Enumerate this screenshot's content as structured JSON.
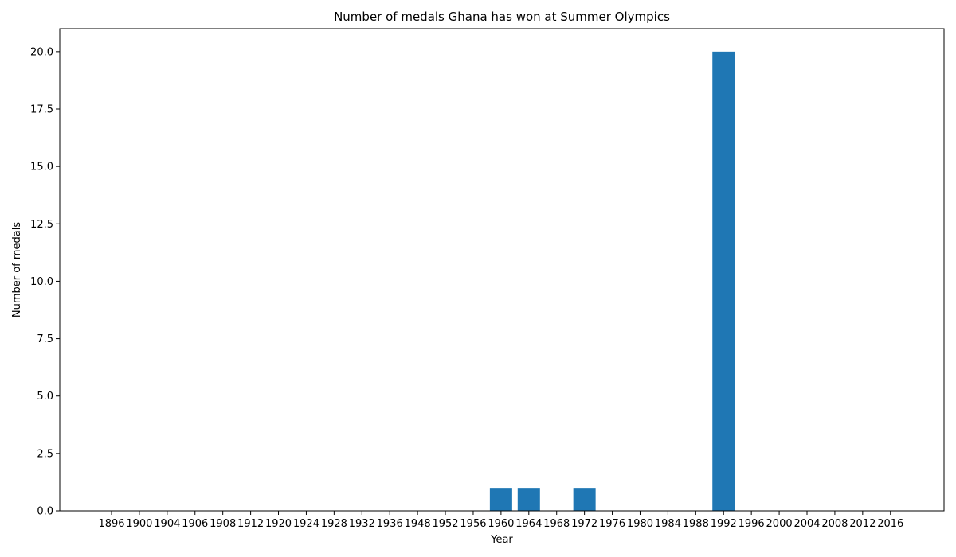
{
  "chart_data": {
    "type": "bar",
    "title": "Number of medals Ghana has won at Summer Olympics",
    "xlabel": "Year",
    "ylabel": "Number of medals",
    "categories": [
      "1896",
      "1900",
      "1904",
      "1906",
      "1908",
      "1912",
      "1920",
      "1924",
      "1928",
      "1932",
      "1936",
      "1948",
      "1952",
      "1956",
      "1960",
      "1964",
      "1968",
      "1972",
      "1976",
      "1980",
      "1984",
      "1988",
      "1992",
      "1996",
      "2000",
      "2004",
      "2008",
      "2012",
      "2016"
    ],
    "values": [
      0,
      0,
      0,
      0,
      0,
      0,
      0,
      0,
      0,
      0,
      0,
      0,
      0,
      0,
      1,
      1,
      0,
      1,
      0,
      0,
      0,
      0,
      20,
      0,
      0,
      0,
      0,
      0,
      0
    ],
    "ylim": [
      0,
      21
    ],
    "yticks": [
      0.0,
      2.5,
      5.0,
      7.5,
      10.0,
      12.5,
      15.0,
      17.5,
      20.0
    ],
    "ytick_labels": [
      "0.0",
      "2.5",
      "5.0",
      "7.5",
      "10.0",
      "12.5",
      "15.0",
      "17.5",
      "20.0"
    ],
    "bar_color": "#1f77b4",
    "grid": false,
    "legend": "none"
  }
}
